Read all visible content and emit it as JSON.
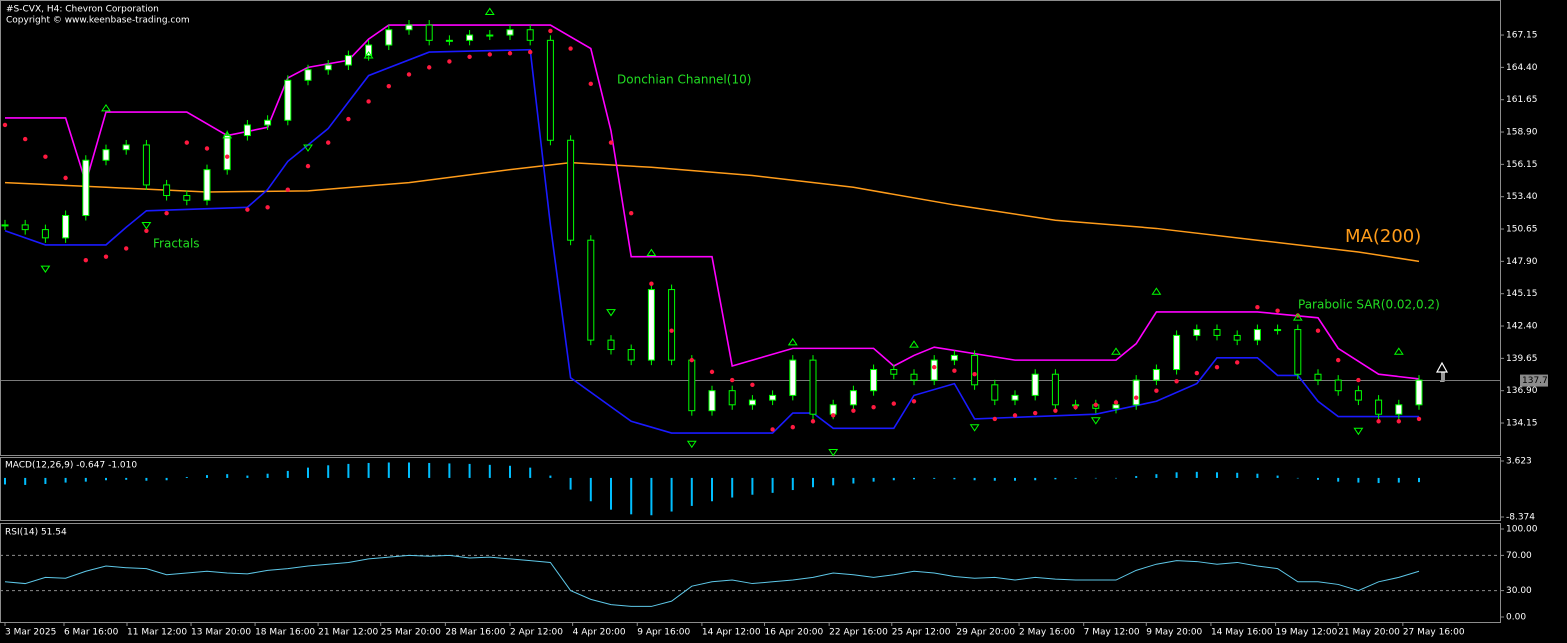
{
  "chart_data": [
    {
      "type": "candlestick",
      "title": "#S-CVX, H4:  Chevron Corporation",
      "subtitle": "Copyright © www.keenbase-trading.com",
      "color": "#00ff00",
      "close": [
        151.0,
        150.6,
        149.9,
        151.8,
        156.5,
        157.4,
        157.8,
        154.4,
        153.5,
        153.1,
        155.7,
        158.6,
        159.5,
        159.9,
        163.3,
        164.2,
        164.6,
        165.4,
        166.3,
        167.6,
        168.0,
        166.7,
        166.7,
        167.15,
        167.15,
        167.6,
        166.7,
        158.2,
        149.7,
        141.2,
        140.4,
        139.5,
        145.5,
        139.5,
        135.2,
        136.9,
        135.7,
        136.1,
        136.5,
        139.5,
        134.9,
        135.7,
        136.9,
        138.7,
        138.3,
        137.8,
        139.5,
        139.9,
        137.4,
        136.1,
        136.5,
        138.3,
        135.7,
        135.7,
        135.4,
        135.7,
        137.8,
        138.7,
        141.6,
        142.1,
        141.6,
        141.2,
        142.1,
        142.1,
        138.3,
        137.8,
        136.9,
        136.1,
        134.9,
        135.7,
        137.8
      ],
      "last_price": 137.76,
      "xlim": [
        0,
        70
      ],
      "xticks": [
        {
          "value": 0,
          "label": "3 Mar 2025"
        },
        {
          "value": 2.92,
          "label": "6 Mar 16:00"
        },
        {
          "value": 6.04,
          "label": "11 Mar 12:00"
        },
        {
          "value": 9.21,
          "label": "13 Mar 20:00"
        },
        {
          "value": 12.38,
          "label": "18 Mar 16:00"
        },
        {
          "value": 15.5,
          "label": "21 Mar 12:00"
        },
        {
          "value": 18.6,
          "label": "25 Mar 20:00"
        },
        {
          "value": 21.8,
          "label": "28 Mar 16:00"
        },
        {
          "value": 25.0,
          "label": "2 Apr 12:00"
        },
        {
          "value": 28.1,
          "label": "4 Apr 20:00"
        },
        {
          "value": 31.3,
          "label": "9 Apr 16:00"
        },
        {
          "value": 34.5,
          "label": "14 Apr 12:00"
        },
        {
          "value": 37.6,
          "label": "16 Apr 20:00"
        },
        {
          "value": 40.8,
          "label": "22 Apr 16:00"
        },
        {
          "value": 43.9,
          "label": "25 Apr 12:00"
        },
        {
          "value": 47.1,
          "label": "29 Apr 20:00"
        },
        {
          "value": 50.2,
          "label": "2 May 16:00"
        },
        {
          "value": 53.4,
          "label": "7 May 12:00"
        },
        {
          "value": 56.5,
          "label": "9 May 20:00"
        },
        {
          "value": 59.7,
          "label": "14 May 16:00"
        },
        {
          "value": 62.9,
          "label": "19 May 12:00"
        },
        {
          "value": 66.0,
          "label": "21 May 20:00"
        },
        {
          "value": 69.2,
          "label": "27 May 16:00"
        }
      ],
      "ylim": [
        131.43,
        170.13
      ],
      "yticks": [
        167.15,
        {
          "value": 164.4,
          "label": "164.40"
        },
        161.65,
        {
          "value": 158.9,
          "label": "158.90"
        },
        156.15,
        {
          "value": 153.4,
          "label": "153.40"
        },
        150.65,
        {
          "value": 147.9,
          "label": "147.90"
        },
        145.15,
        {
          "value": 142.4,
          "label": "142.40"
        },
        139.65,
        {
          "value": 136.9,
          "label": "136.90"
        },
        134.15
      ],
      "ma": {
        "name": "MA(200)",
        "color": "#ff9c1a",
        "x": [
          0,
          5,
          10,
          15,
          20,
          25,
          28,
          32,
          37,
          42,
          47,
          52,
          57,
          62,
          67,
          70
        ],
        "values": [
          154.6,
          154.2,
          153.8,
          153.9,
          154.6,
          155.7,
          156.3,
          155.9,
          155.2,
          154.2,
          152.7,
          151.4,
          150.7,
          149.7,
          148.7,
          147.9
        ]
      },
      "donchian": {
        "name": "Donchian Channel(10)",
        "upper": {
          "color": "#ff00ff",
          "x": [
            0,
            3,
            4,
            5,
            9,
            11,
            13,
            14,
            15,
            17,
            18,
            19,
            27,
            29,
            30,
            31,
            35,
            36,
            39,
            43,
            44,
            45,
            46,
            50,
            55,
            56,
            57,
            62,
            65,
            66,
            68,
            70
          ],
          "values": [
            160.1,
            160.1,
            154.6,
            160.6,
            160.6,
            158.6,
            159.3,
            163.5,
            164.4,
            165.0,
            166.8,
            168.0,
            168.0,
            166.0,
            159.0,
            148.3,
            148.3,
            139.0,
            140.5,
            140.5,
            139.0,
            139.9,
            140.6,
            139.5,
            139.5,
            140.9,
            143.6,
            143.6,
            143.1,
            140.5,
            138.3,
            137.9
          ]
        },
        "lower": {
          "color": "#1a1aff",
          "x": [
            0,
            2,
            5,
            6,
            7,
            12,
            13,
            14,
            16,
            18,
            21,
            26,
            27,
            28,
            31,
            33,
            38,
            39,
            40,
            41,
            44,
            45,
            47,
            48,
            54,
            57,
            59,
            60,
            62,
            63,
            64,
            65,
            66,
            70
          ],
          "values": [
            150.5,
            149.3,
            149.3,
            150.8,
            152.2,
            152.5,
            154.0,
            156.4,
            159.2,
            163.7,
            165.7,
            165.9,
            151.0,
            138.0,
            134.3,
            133.3,
            133.3,
            135.0,
            135.0,
            133.7,
            133.7,
            136.5,
            137.5,
            134.5,
            134.9,
            136.0,
            137.5,
            139.7,
            139.7,
            138.2,
            138.2,
            136.0,
            134.7,
            134.7
          ]
        }
      },
      "sar": {
        "name": "Parabolic SAR(0.02,0.2)",
        "color": "#ff1a40",
        "values": [
          159.5,
          158.3,
          156.8,
          155.0,
          148.0,
          148.3,
          149.0,
          150.5,
          152.0,
          158.0,
          157.5,
          156.8,
          152.3,
          152.5,
          154.0,
          156.0,
          158.0,
          160.0,
          161.5,
          162.8,
          163.8,
          164.4,
          164.9,
          165.3,
          165.5,
          165.6,
          165.7,
          167.5,
          166.0,
          163.0,
          158.0,
          152.0,
          146.0,
          142.0,
          139.5,
          138.5,
          137.8,
          137.4,
          133.6,
          133.8,
          134.3,
          134.8,
          135.2,
          135.5,
          135.8,
          136.0,
          138.9,
          138.6,
          138.3,
          134.5,
          134.8,
          135.0,
          135.2,
          135.5,
          135.7,
          135.9,
          136.3,
          136.9,
          137.7,
          138.4,
          138.9,
          139.3,
          144.0,
          143.7,
          143.3,
          142.0,
          139.5,
          137.8,
          134.3,
          134.3,
          134.5
        ]
      },
      "fractals": {
        "name": "Fractals",
        "color": "#00ff00",
        "up": {
          "x": [
            5,
            11,
            18,
            24,
            32,
            39,
            45,
            55,
            57,
            64,
            69
          ],
          "values": [
            160.7,
            158.4,
            165.2,
            168.9,
            148.4,
            140.8,
            140.6,
            140.0,
            145.1,
            142.9,
            140.0
          ]
        },
        "down": {
          "x": [
            2,
            7,
            15,
            30,
            34,
            41,
            48,
            54,
            67
          ],
          "values": [
            147.5,
            151.2,
            157.8,
            143.8,
            132.6,
            131.9,
            134.0,
            134.6,
            133.7
          ]
        }
      }
    },
    {
      "type": "bar",
      "title": "MACD(12,26,9) -0.647 -1.010",
      "color": "#00bfff",
      "values": [
        -1.4,
        -1.5,
        -1.3,
        -1.0,
        -0.8,
        -0.5,
        -0.4,
        -0.6,
        -0.5,
        0.2,
        0.6,
        0.8,
        0.5,
        0.9,
        1.5,
        2.2,
        2.7,
        3.0,
        3.2,
        3.3,
        3.3,
        3.2,
        3.1,
        3.0,
        2.8,
        2.6,
        2.2,
        0.5,
        -2.5,
        -5.0,
        -6.8,
        -7.8,
        -8.0,
        -7.2,
        -6.0,
        -5.0,
        -4.2,
        -3.6,
        -3.2,
        -2.6,
        -2.0,
        -1.6,
        -1.2,
        -0.8,
        -0.5,
        -0.3,
        -0.2,
        -0.3,
        -0.5,
        -0.6,
        -0.6,
        -0.5,
        -0.3,
        -0.2,
        -0.1,
        0.0,
        0.4,
        0.8,
        1.2,
        1.3,
        1.2,
        1.1,
        0.9,
        0.5,
        0.0,
        -0.4,
        -0.8,
        -1.0,
        -1.1,
        -1.0,
        -0.9
      ],
      "ylim": [
        -9.23,
        4.48
      ],
      "yticks": [
        3.623,
        -8.374
      ]
    },
    {
      "type": "line",
      "title": "RSI(14) 51.54",
      "color": "#5ec8e8",
      "values": [
        40,
        38,
        45,
        44,
        52,
        58,
        56,
        55,
        48,
        50,
        52,
        50,
        49,
        53,
        55,
        58,
        60,
        62,
        66,
        68,
        70,
        69,
        70,
        67,
        68,
        66,
        64,
        62,
        30,
        20,
        14,
        12,
        12,
        18,
        35,
        40,
        42,
        38,
        40,
        42,
        45,
        50,
        48,
        45,
        48,
        52,
        50,
        46,
        44,
        45,
        42,
        45,
        43,
        42,
        42,
        42,
        53,
        60,
        64,
        63,
        60,
        62,
        58,
        55,
        40,
        40,
        37,
        30,
        40,
        45,
        52
      ],
      "ylim": [
        -5.7,
        105.7
      ],
      "yticks": [
        {
          "value": 100,
          "label": "100.00"
        },
        {
          "value": 70,
          "label": "70.00"
        },
        {
          "value": 30,
          "label": "30.00"
        },
        {
          "value": 0,
          "label": "0.00"
        }
      ],
      "levels": [
        70,
        30
      ]
    }
  ]
}
